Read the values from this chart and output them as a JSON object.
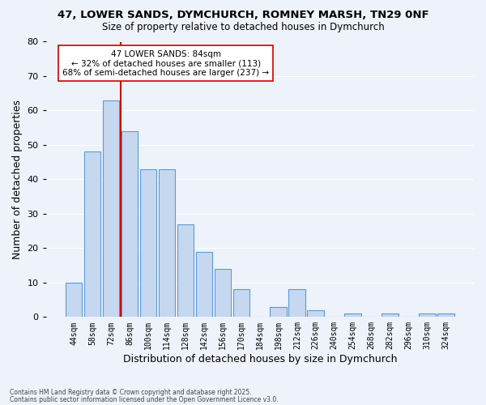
{
  "title1": "47, LOWER SANDS, DYMCHURCH, ROMNEY MARSH, TN29 0NF",
  "title2": "Size of property relative to detached houses in Dymchurch",
  "xlabel": "Distribution of detached houses by size in Dymchurch",
  "ylabel": "Number of detached properties",
  "bin_labels": [
    "44sqm",
    "58sqm",
    "72sqm",
    "86sqm",
    "100sqm",
    "114sqm",
    "128sqm",
    "142sqm",
    "156sqm",
    "170sqm",
    "184sqm",
    "198sqm",
    "212sqm",
    "226sqm",
    "240sqm",
    "254sqm",
    "268sqm",
    "282sqm",
    "296sqm",
    "310sqm",
    "324sqm"
  ],
  "bar_heights": [
    10,
    48,
    63,
    54,
    43,
    43,
    27,
    19,
    14,
    8,
    0,
    3,
    8,
    2,
    0,
    1,
    0,
    1,
    0,
    1,
    1
  ],
  "bar_color": "#c5d8f0",
  "bar_edge_color": "#5b9bd5",
  "vline_color": "#cc0000",
  "vline_x_index": 2.5,
  "ylim": [
    0,
    80
  ],
  "yticks": [
    0,
    10,
    20,
    30,
    40,
    50,
    60,
    70,
    80
  ],
  "annotation_title": "47 LOWER SANDS: 84sqm",
  "annotation_line1": "← 32% of detached houses are smaller (113)",
  "annotation_line2": "68% of semi-detached houses are larger (237) →",
  "footnote1": "Contains HM Land Registry data © Crown copyright and database right 2025.",
  "footnote2": "Contains public sector information licensed under the Open Government Licence v3.0.",
  "bg_color": "#eef2fa",
  "grid_color": "#ffffff",
  "annotation_box_facecolor": "#ffffff",
  "annotation_box_edgecolor": "#cc0000"
}
